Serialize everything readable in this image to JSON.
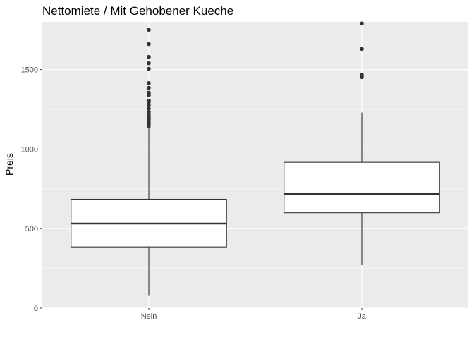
{
  "chart_data": {
    "type": "boxplot",
    "title": "Nettomiete / Mit Gehobener Kueche",
    "xlabel": "",
    "ylabel": "Preis",
    "ylim": [
      0,
      1800
    ],
    "yticks": [
      0,
      500,
      1000,
      1500
    ],
    "grid": true,
    "legend": "none",
    "categories": [
      "Nein",
      "Ja"
    ],
    "boxes": [
      {
        "category": "Nein",
        "whisker_low": 77,
        "q1": 385,
        "median": 532,
        "q3": 685,
        "whisker_high": 1135,
        "outliers": [
          1145,
          1160,
          1175,
          1190,
          1205,
          1220,
          1235,
          1255,
          1275,
          1295,
          1305,
          1340,
          1355,
          1385,
          1415,
          1505,
          1540,
          1580,
          1660,
          1750
        ]
      },
      {
        "category": "Ja",
        "whisker_low": 270,
        "q1": 600,
        "median": 718,
        "q3": 917,
        "whisker_high": 1230,
        "outliers": [
          1453,
          1467,
          1630,
          1790
        ]
      }
    ]
  },
  "colors": {
    "panel_bg": "#EBEBEB",
    "grid_major": "#FFFFFF",
    "box_fill": "#FFFFFF",
    "box_stroke": "#333333",
    "text": "#000000",
    "tick_text": "#4D4D4D"
  }
}
